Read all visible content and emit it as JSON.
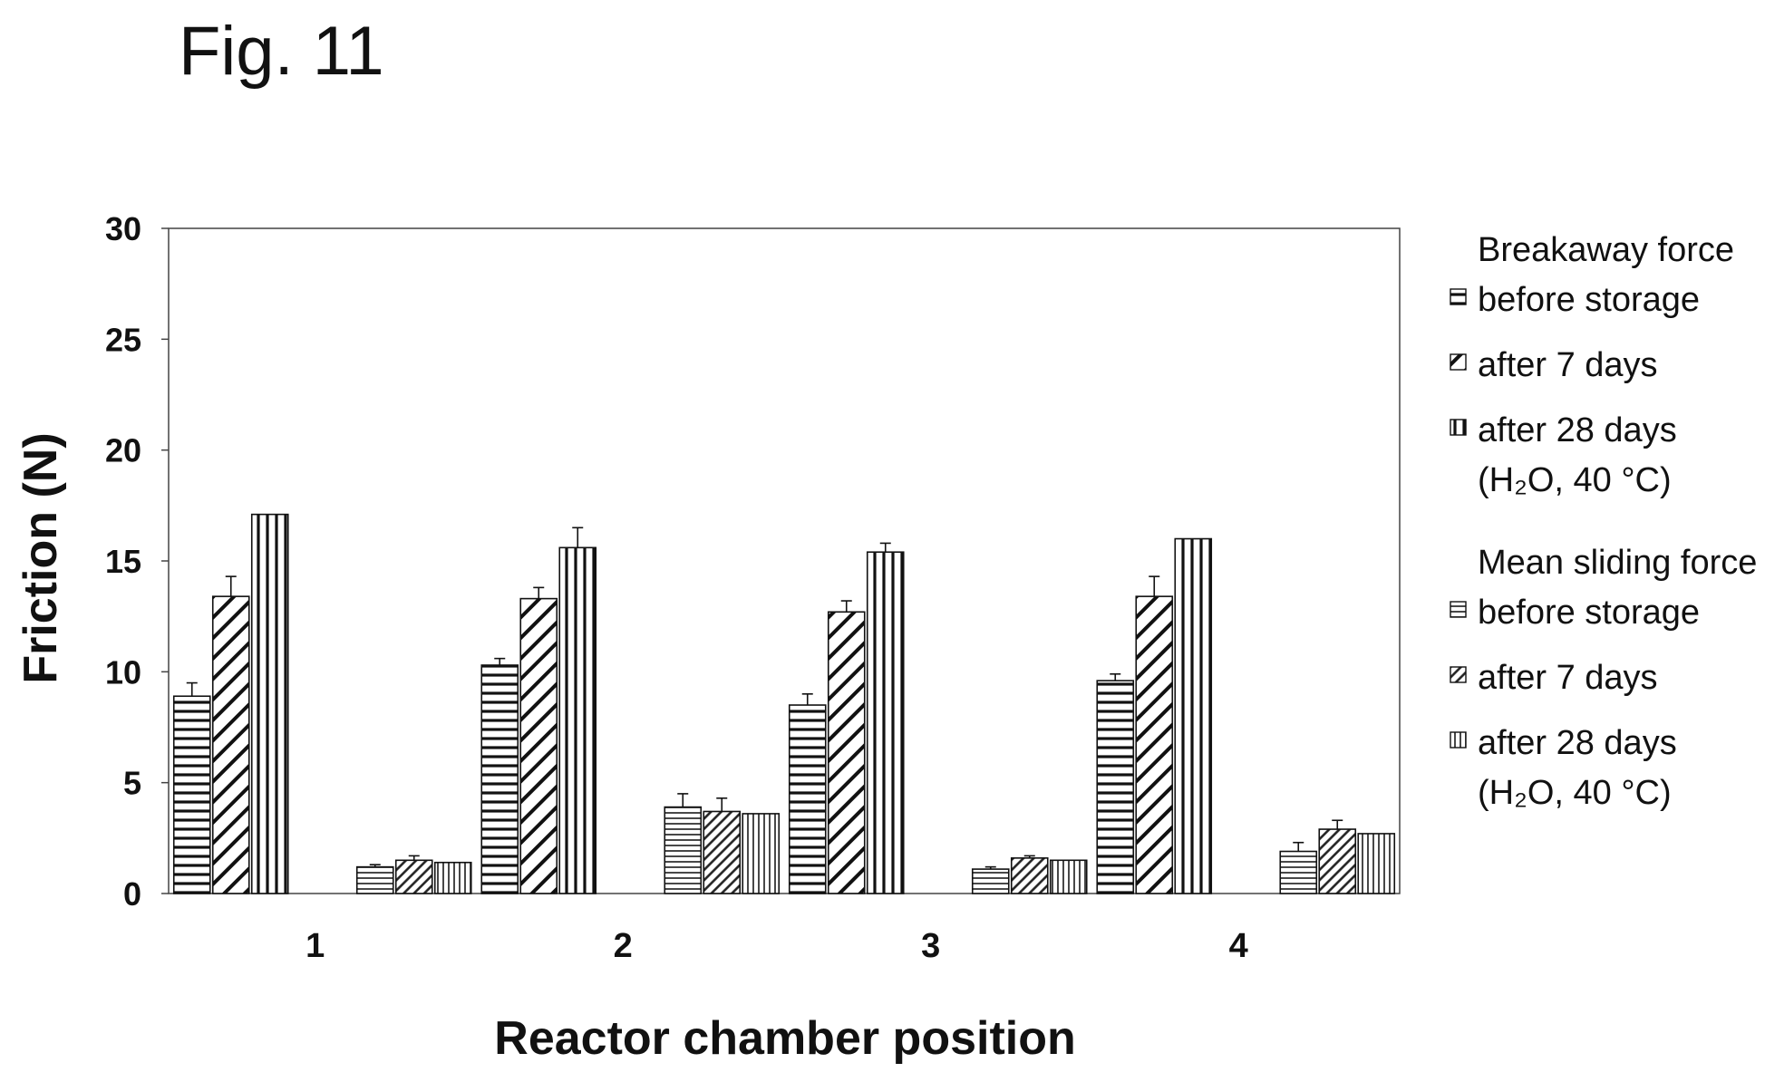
{
  "figure": {
    "title": "Fig. 11"
  },
  "chart_data": {
    "type": "bar",
    "title": "",
    "xlabel": "Reactor chamber position",
    "ylabel": "Friction (N)",
    "ylim": [
      0,
      30
    ],
    "yticks": [
      "0",
      "5",
      "10",
      "15",
      "20",
      "25",
      "30"
    ],
    "categories": [
      "1",
      "2",
      "3",
      "4"
    ],
    "grid": false,
    "legend_position": "right",
    "groups": [
      {
        "name": "Breakaway force",
        "series": [
          {
            "name": "before storage",
            "pattern": "horizontal",
            "values": [
              8.9,
              10.3,
              8.5,
              9.6
            ],
            "errors": [
              0.6,
              0.3,
              0.5,
              0.3
            ]
          },
          {
            "name": "after 7 days",
            "pattern": "diagonal",
            "values": [
              13.4,
              13.3,
              12.7,
              13.4
            ],
            "errors": [
              0.9,
              0.5,
              0.5,
              0.9
            ]
          },
          {
            "name": "after 28 days (H2O, 40 °C)",
            "pattern": "vertical",
            "values": [
              17.1,
              15.6,
              15.4,
              16.0
            ],
            "errors": [
              0.0,
              0.9,
              0.4,
              0.0
            ]
          }
        ]
      },
      {
        "name": "Mean sliding force",
        "series": [
          {
            "name": "before storage",
            "pattern": "horizontal-fine",
            "values": [
              1.2,
              3.9,
              1.1,
              1.9
            ],
            "errors": [
              0.1,
              0.6,
              0.1,
              0.4
            ]
          },
          {
            "name": "after 7 days",
            "pattern": "diagonal-fine",
            "values": [
              1.5,
              3.7,
              1.6,
              2.9
            ],
            "errors": [
              0.2,
              0.6,
              0.1,
              0.4
            ]
          },
          {
            "name": "after 28 days (H2O, 40 °C)",
            "pattern": "vertical-fine",
            "values": [
              1.4,
              3.6,
              1.5,
              2.7
            ],
            "errors": [
              0.0,
              0.0,
              0.0,
              0.0
            ]
          }
        ]
      }
    ]
  },
  "legend": {
    "entries": [
      {
        "lines": [
          "Breakaway force",
          "before storage"
        ],
        "pattern": "horizontal"
      },
      {
        "lines": [
          "after 7 days"
        ],
        "pattern": "diagonal"
      },
      {
        "lines": [
          "after 28 days",
          "(H₂O, 40 °C)"
        ],
        "pattern": "vertical"
      },
      {
        "lines": [
          "Mean sliding force",
          "before storage"
        ],
        "pattern": "horizontal-fine"
      },
      {
        "lines": [
          "after 7 days"
        ],
        "pattern": "diagonal-fine"
      },
      {
        "lines": [
          "after 28 days",
          "(H₂O, 40 °C)"
        ],
        "pattern": "vertical-fine"
      }
    ]
  }
}
